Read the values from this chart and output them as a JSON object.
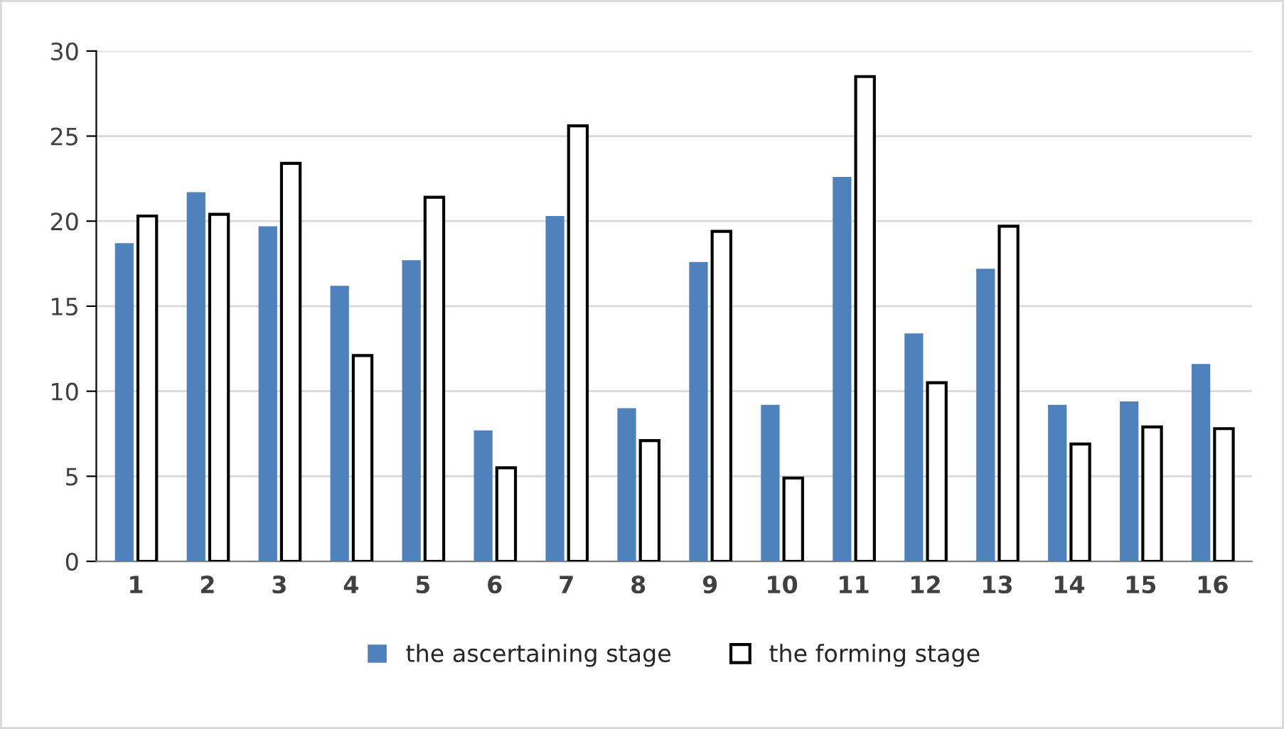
{
  "chart_data": {
    "type": "bar",
    "categories": [
      "1",
      "2",
      "3",
      "4",
      "5",
      "6",
      "7",
      "8",
      "9",
      "10",
      "11",
      "12",
      "13",
      "14",
      "15",
      "16"
    ],
    "series": [
      {
        "name": "the ascertaining stage",
        "color": "#4f81bd",
        "values": [
          18.7,
          21.7,
          19.7,
          16.2,
          17.7,
          7.7,
          20.3,
          9.0,
          17.6,
          9.2,
          22.6,
          13.4,
          17.2,
          9.2,
          9.4,
          11.6
        ]
      },
      {
        "name": "the forming stage",
        "color": "#ffffff",
        "values": [
          20.3,
          20.4,
          23.4,
          12.1,
          21.4,
          5.5,
          25.6,
          7.1,
          19.4,
          4.9,
          28.5,
          10.5,
          19.7,
          6.9,
          7.9,
          7.8
        ]
      }
    ],
    "ylim": [
      0,
      30
    ],
    "yticks": [
      0,
      5,
      10,
      15,
      20,
      25,
      30
    ],
    "grid": "y",
    "legend": "bottom"
  }
}
